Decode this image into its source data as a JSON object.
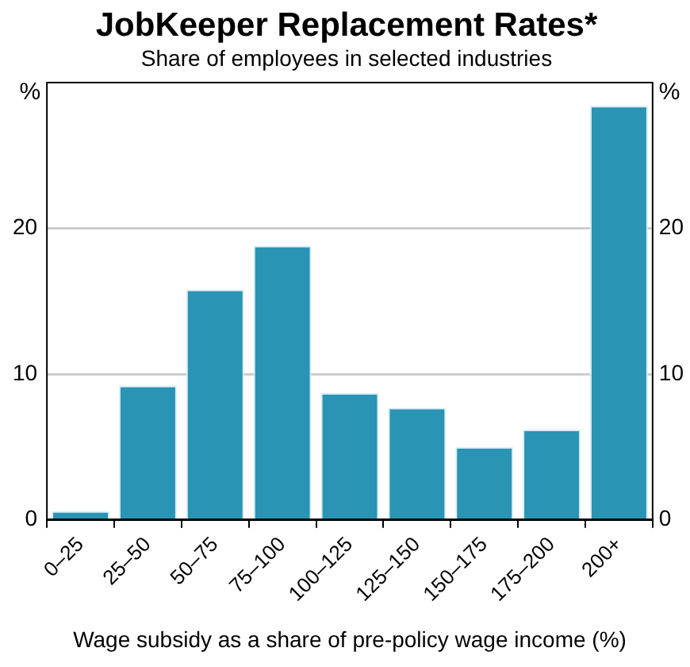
{
  "chart_data": {
    "type": "bar",
    "title": "JobKeeper Replacement Rates*",
    "subtitle": "Share of employees in selected industries",
    "xlabel": "Wage subsidy as a share of pre-policy wage income (%)",
    "ylabel": "%",
    "y2label": "%",
    "categories": [
      "0–25",
      "25–50",
      "50–75",
      "75–100",
      "100–125",
      "125–150",
      "150–175",
      "175–200",
      "200+"
    ],
    "values": [
      0.6,
      9.2,
      15.8,
      18.8,
      8.7,
      7.7,
      5.0,
      6.2,
      28.4
    ],
    "color": "#2a94b4",
    "ylim": [
      0,
      30
    ],
    "yticks": [
      0,
      10,
      20
    ],
    "y2lim": [
      0,
      30
    ],
    "y2ticks": [
      0,
      10,
      20
    ],
    "grid": "y",
    "legend": false
  }
}
